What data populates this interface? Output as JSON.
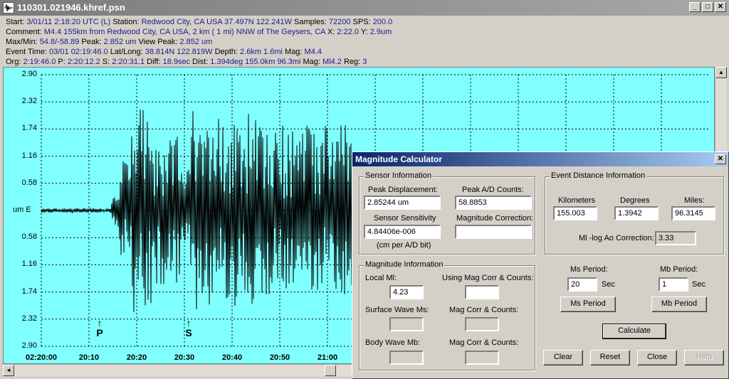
{
  "window": {
    "title": "110301.021946.khref.psn",
    "minimize": "_",
    "maximize": "□",
    "close": "✕"
  },
  "info": {
    "line1": [
      {
        "t": "Start: ",
        "v": "3/01/11  2:18:20 UTC (L)"
      },
      {
        "t": " Station: ",
        "v": "Redwood City, CA USA 37.497N 122.241W"
      },
      {
        "t": " Samples: ",
        "v": "72200"
      },
      {
        "t": "  SPS: ",
        "v": "200.0"
      }
    ],
    "line2": [
      {
        "t": "Comment: ",
        "v": "M4.4 155km from Redwood City, CA USA,    2 km (  1 mi) NNW of The Geysers, CA"
      },
      {
        "t": "    X: ",
        "v": "2:22.0"
      },
      {
        "t": " Y: ",
        "v": "2.9um"
      }
    ],
    "line3": [
      {
        "t": "Max/Min: ",
        "v": "54.8/-58.89"
      },
      {
        "t": "  Peak: ",
        "v": "2.852 um"
      },
      {
        "t": "  View Peak: ",
        "v": "2.852 um"
      }
    ],
    "line4": [
      {
        "t": "Event Time: ",
        "v": "03/01 02:19:46.0"
      },
      {
        "t": " Lat/Long: ",
        "v": "38.814N 122.819W"
      },
      {
        "t": " Depth: ",
        "v": "2.6km 1.6mi"
      },
      {
        "t": " Mag: ",
        "v": "M4.4"
      }
    ],
    "line5": [
      {
        "t": "Org: ",
        "v": "2:19:46.0"
      },
      {
        "t": " P: ",
        "v": "2:20:12.2"
      },
      {
        "t": " S: ",
        "v": "2:20:31.1"
      },
      {
        "t": " Diff: ",
        "v": "18.9sec"
      },
      {
        "t": " Dist: ",
        "v": "1.394deg 155.0km 96.3mi"
      },
      {
        "t": "  Mag: ",
        "v": "Ml4.2"
      },
      {
        "t": " Reg: ",
        "v": "3"
      }
    ]
  },
  "plot": {
    "background": "#80ffff",
    "trace_color": "#000000",
    "y_ticks": [
      "2.90",
      "2.32",
      "1.74",
      "1.16",
      "0.58",
      "um   E",
      "0.58",
      "1.16",
      "1.74",
      "2.32",
      "2.90"
    ],
    "x_ticks": [
      "02:20:00",
      "20:10",
      "20:20",
      "20:30",
      "20:40",
      "20:50",
      "21:00"
    ],
    "p_label": "P",
    "s_label": "S",
    "up_arrow": "▲",
    "down_arrow": "▼",
    "left_arrow": "◄"
  },
  "dialog": {
    "title": "Magnitude Calculator",
    "close": "✕",
    "sensor": {
      "group": "Sensor Information",
      "peak_disp_label": "Peak Displacement:",
      "peak_disp_value": "2.85244 um",
      "peak_ad_label": "Peak A/D Counts:",
      "peak_ad_value": "58.8853",
      "sensitivity_label": "Sensor Sensitivity",
      "sensitivity_value": "4.84406e-006",
      "sensitivity_unit": "(cm per A/D bit)",
      "mag_corr_label": "Magnitude Correction:",
      "mag_corr_value": ""
    },
    "distance": {
      "group": "Event Distance Information",
      "km_label": "Kilometers",
      "km_value": "155.003",
      "deg_label": "Degrees",
      "deg_value": "1.3942",
      "mi_label": "Miles:",
      "mi_value": "96.3145",
      "ao_label": "Ml -log Ao Correction:",
      "ao_value": "3.33"
    },
    "magnitude": {
      "group": "Magnitude Information",
      "local_ml_label": "Local Ml:",
      "local_ml_value": "4.23",
      "using_corr_label": "Using Mag Corr & Counts:",
      "surface_label": "Surface Wave Ms:",
      "corr_counts_label1": "Mag Corr & Counts:",
      "body_label": "Body Wave Mb:",
      "corr_counts_label2": "Mag Corr & Counts:"
    },
    "periods": {
      "ms_label": "Ms Period:",
      "ms_value": "20",
      "ms_unit": "Sec",
      "mb_label": "Mb Period:",
      "mb_value": "1",
      "mb_unit": "Sec",
      "ms_button": "Ms Period",
      "mb_button": "Mb Period",
      "calculate": "Calculate"
    },
    "buttons": {
      "clear": "Clear",
      "reset": "Reset",
      "close": "Close",
      "help": "Help"
    }
  }
}
